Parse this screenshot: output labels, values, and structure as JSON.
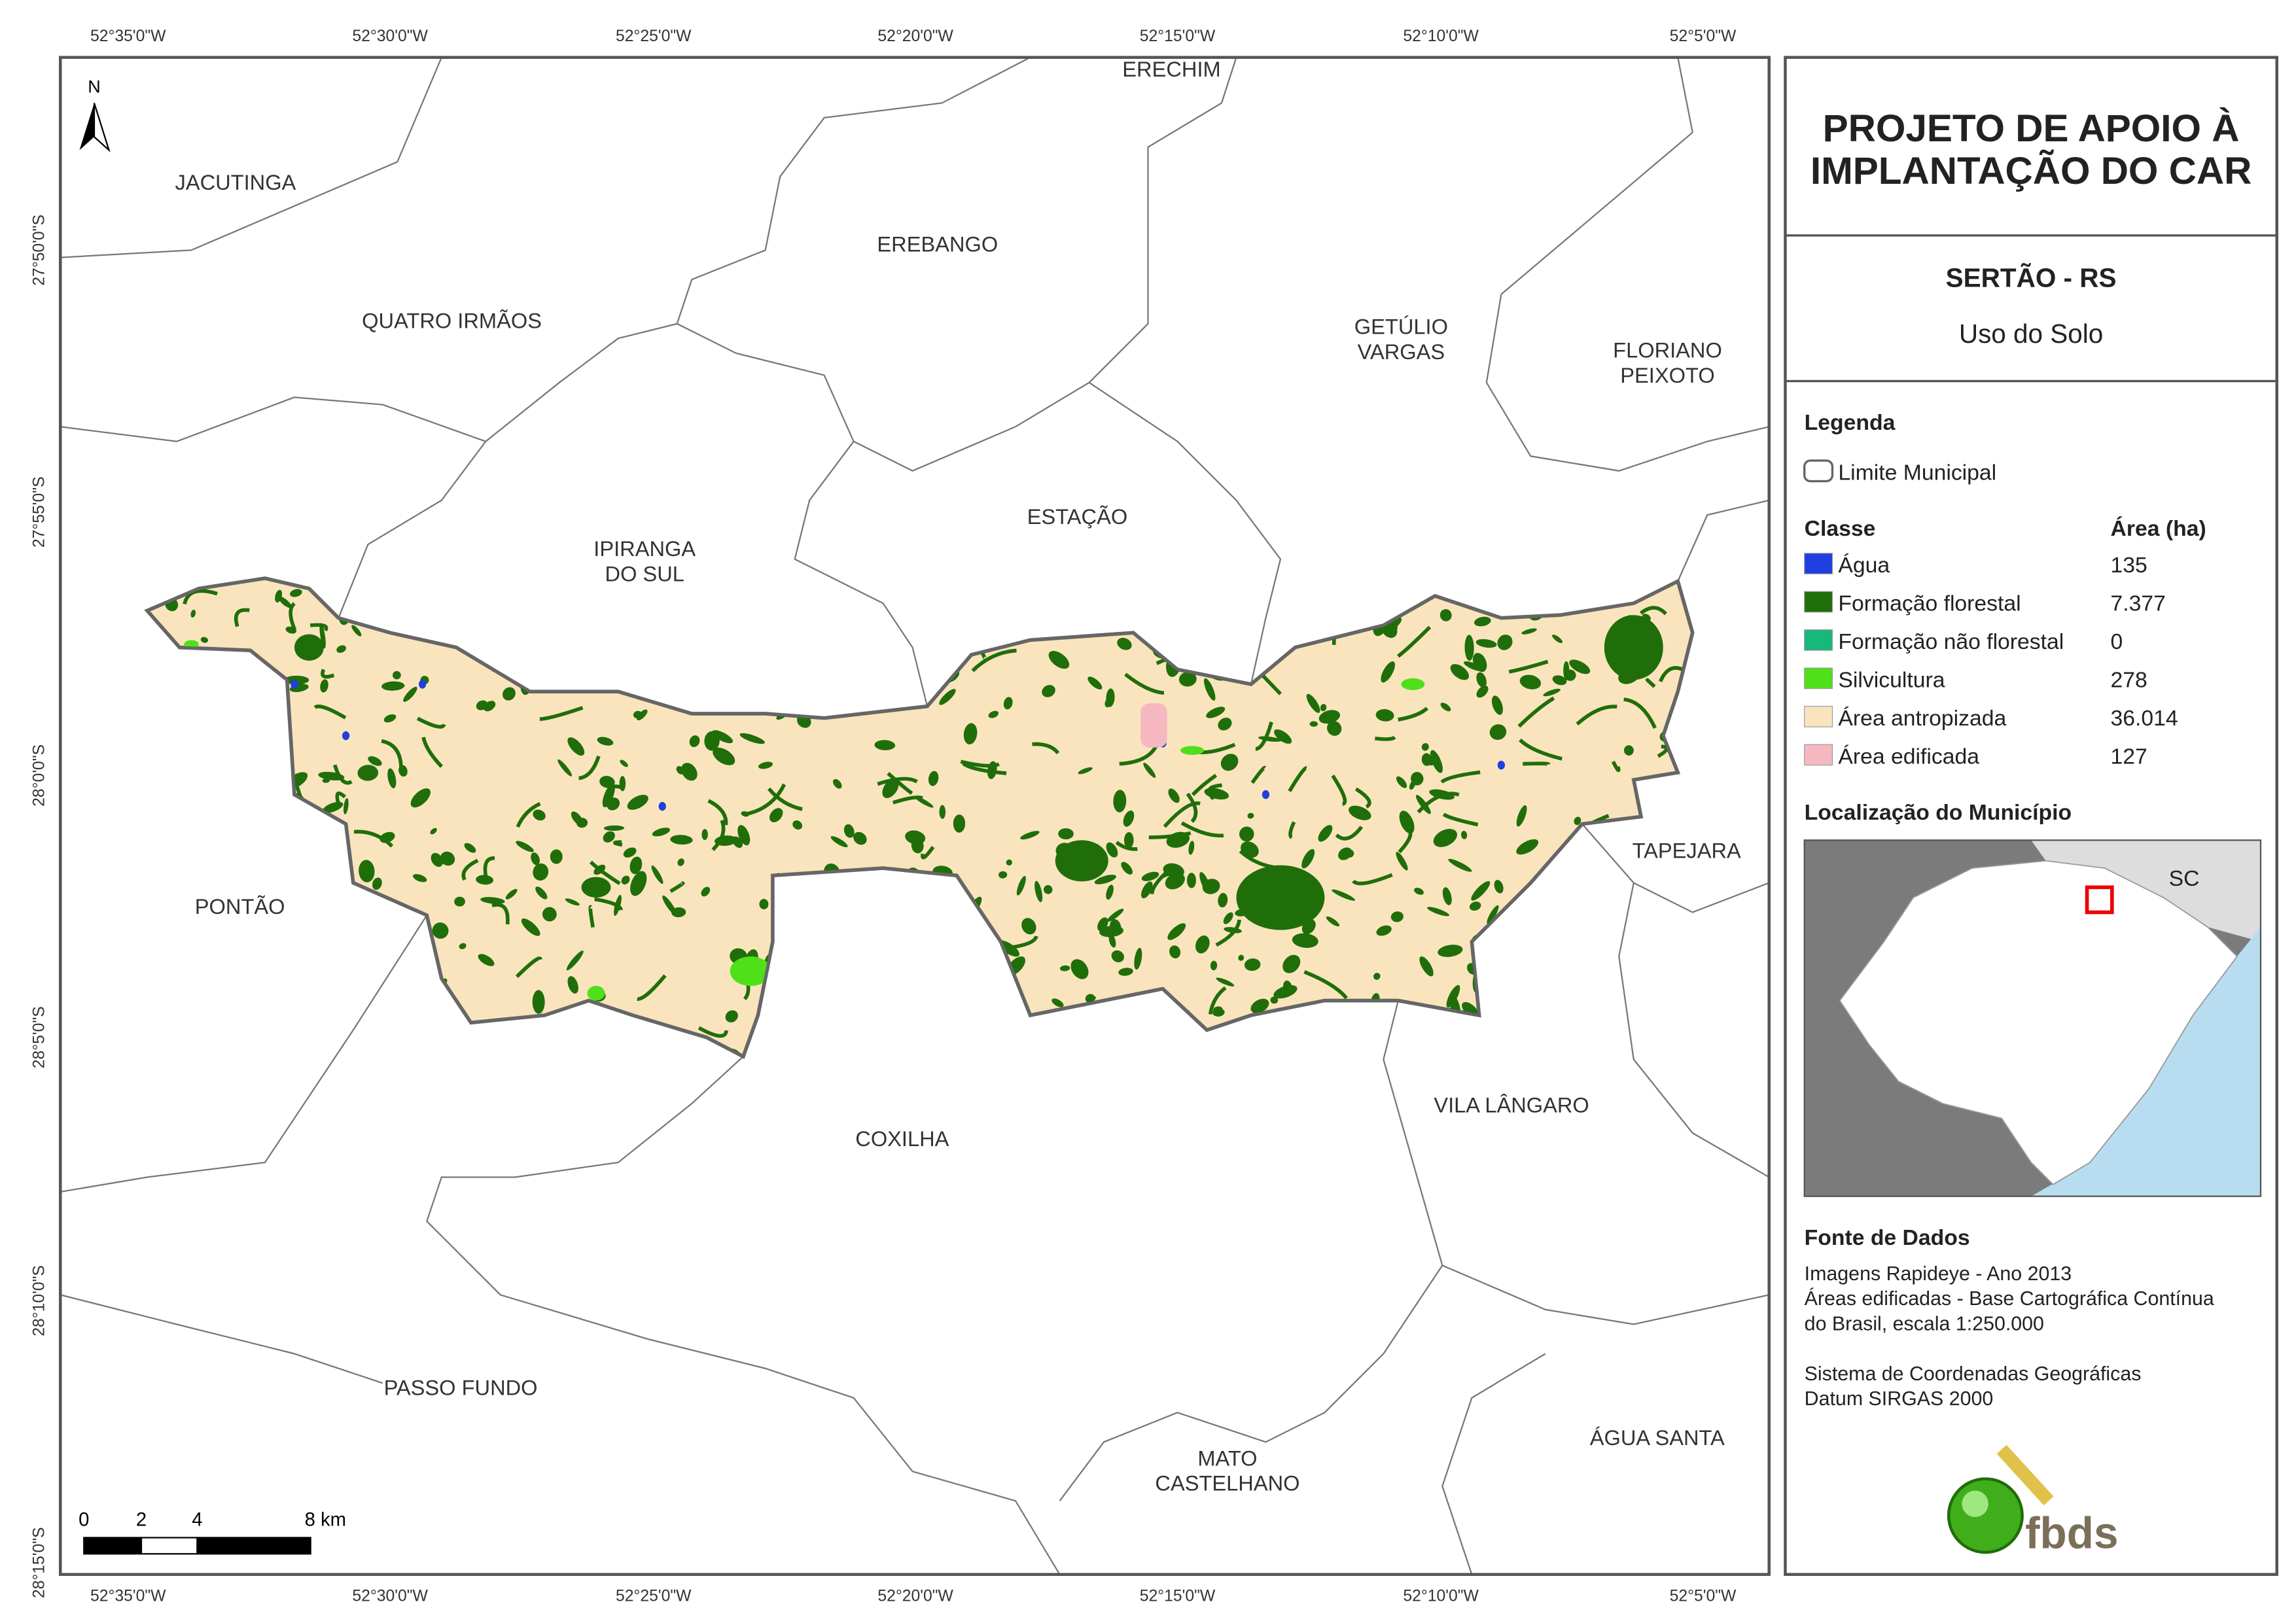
{
  "map": {
    "top_ticks": [
      "52°35'0\"W",
      "52°30'0\"W",
      "52°25'0\"W",
      "52°20'0\"W",
      "52°15'0\"W",
      "52°10'0\"W",
      "52°5'0\"W"
    ],
    "bottom_ticks": [
      "52°35'0\"W",
      "52°30'0\"W",
      "52°25'0\"W",
      "52°20'0\"W",
      "52°15'0\"W",
      "52°10'0\"W",
      "52°5'0\"W"
    ],
    "left_ticks": [
      "27°50'0\"S",
      "27°55'0\"S",
      "28°0'0\"S",
      "28°5'0\"S",
      "28°10'0\"S",
      "28°15'0\"S"
    ],
    "north": "N",
    "places": [
      [
        "ERECHIM"
      ],
      [
        "JACUTINGA"
      ],
      [
        "EREBANGO"
      ],
      [
        "QUATRO IRMÃOS"
      ],
      [
        "GETÚLIO",
        "VARGAS"
      ],
      [
        "FLORIANO",
        "PEIXOTO"
      ],
      [
        "ESTAÇÃO"
      ],
      [
        "IPIRANGA",
        "DO SUL"
      ],
      [
        "TAPEJARA"
      ],
      [
        "PONTÃO"
      ],
      [
        "VILA LÂNGARO"
      ],
      [
        "COXILHA"
      ],
      [
        "PASSO FUNDO"
      ],
      [
        "MATO",
        "CASTELHANO"
      ],
      [
        "ÁGUA SANTA"
      ]
    ],
    "scale": [
      "0",
      "2",
      "4",
      "8 km"
    ]
  },
  "panel": {
    "title": [
      "PROJETO DE APOIO À",
      "IMPLANTAÇÃO DO CAR"
    ],
    "municipality": "SERTÃO - RS",
    "subtitle": "Uso do Solo",
    "legend_title": "Legenda",
    "boundary": "Limite Municipal",
    "class_header": "Classe",
    "area_header": "Área (ha)",
    "classes": [
      {
        "name": "Água",
        "area": "135",
        "color": "#1f3fe0"
      },
      {
        "name": "Formação florestal",
        "area": "7.377",
        "color": "#1f6e0a"
      },
      {
        "name": "Formação não florestal",
        "area": "0",
        "color": "#18b87a"
      },
      {
        "name": "Silvicultura",
        "area": "278",
        "color": "#4fe01a"
      },
      {
        "name": "Área antropizada",
        "area": "36.014",
        "color": "#f9e4bd"
      },
      {
        "name": "Área edificada",
        "area": "127",
        "color": "#f6b8c0"
      }
    ],
    "location_title": "Localização do Município",
    "inset_label": "SC",
    "sources_title": "Fonte de Dados",
    "sources": [
      "Imagens Rapideye - Ano 2013",
      "Áreas edificadas - Base Cartográfica Contínua",
      "do Brasil, escala 1:250.000",
      "",
      "Sistema de Coordenadas Geográficas",
      "Datum SIRGAS 2000"
    ],
    "logo": "fbds"
  }
}
